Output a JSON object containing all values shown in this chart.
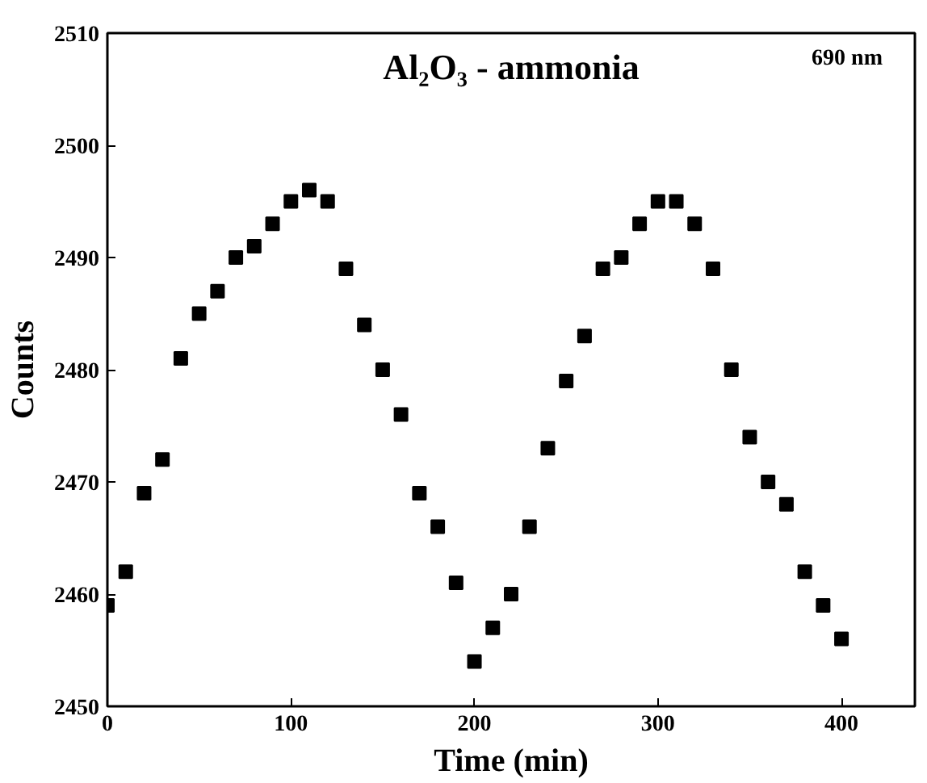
{
  "chart_data": {
    "type": "scatter",
    "xlabel": "Time (min)",
    "ylabel": "Counts",
    "annotations": [
      "Al₂O₃ - ammonia",
      "690 nm"
    ],
    "x": [
      0,
      10,
      20,
      30,
      40,
      50,
      60,
      70,
      80,
      90,
      100,
      110,
      120,
      130,
      140,
      150,
      160,
      170,
      180,
      190,
      200,
      210,
      220,
      230,
      240,
      250,
      260,
      270,
      280,
      290,
      300,
      310,
      320,
      330,
      340,
      350,
      360,
      370,
      380,
      390,
      400
    ],
    "series": [
      {
        "color": "#000000",
        "values": [
          2459,
          2462,
          2469,
          2472,
          2481,
          2485,
          2487,
          2490,
          2491,
          2493,
          2495,
          2496,
          2495,
          2489,
          2484,
          2480,
          2476,
          2469,
          2466,
          2461,
          2454,
          2457,
          2460,
          2466,
          2473,
          2479,
          2483,
          2489,
          2490,
          2493,
          2495,
          2495,
          2493,
          2489,
          2480,
          2474,
          2470,
          2468,
          2462,
          2459,
          2456
        ]
      }
    ],
    "xlim": [
      0,
      440
    ],
    "xticks": [
      0,
      100,
      200,
      300,
      400
    ],
    "ylim": [
      2450,
      2510
    ],
    "yticks": [
      2450,
      2460,
      2470,
      2480,
      2490,
      2500,
      2510
    ],
    "marker": "square"
  }
}
